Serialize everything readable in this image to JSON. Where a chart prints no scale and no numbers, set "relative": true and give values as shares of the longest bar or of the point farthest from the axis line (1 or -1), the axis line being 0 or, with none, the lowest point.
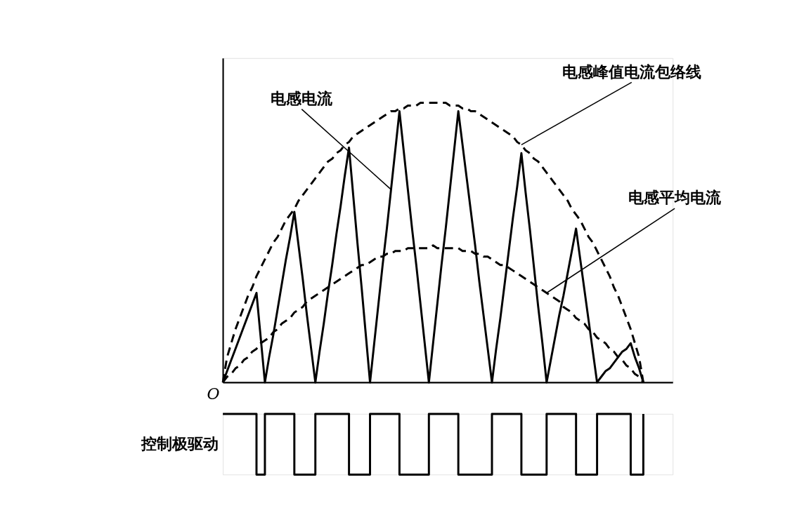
{
  "chart_data": [
    {
      "type": "line",
      "relative": true,
      "tick_labels": false,
      "grid": false,
      "legend": false,
      "annotations": [
        "O"
      ],
      "categories": [
        null,
        null,
        null,
        null,
        null,
        null,
        null,
        null,
        null,
        null,
        null,
        null,
        null,
        null,
        null,
        null,
        null,
        null,
        null,
        null,
        null,
        null,
        null,
        null,
        null,
        null,
        null,
        null,
        null,
        null,
        null,
        null,
        null,
        null,
        null,
        null,
        null,
        null,
        null,
        null,
        null,
        null,
        null,
        null,
        null,
        null,
        null,
        null,
        null,
        null,
        null,
        null,
        null,
        null,
        null,
        null,
        null,
        null,
        null,
        null,
        null,
        null,
        null,
        null,
        null,
        null,
        null,
        null,
        null,
        null,
        null,
        null,
        null,
        null,
        null,
        null,
        null,
        null,
        null,
        null,
        null,
        null,
        null,
        null,
        null,
        null,
        null,
        null,
        null,
        null,
        null,
        null,
        null,
        null,
        null,
        null,
        null,
        null,
        null,
        null,
        null
      ],
      "series": [
        {
          "name": "电感电流",
          "color": "#000000",
          "line_style": "solid",
          "values": [
            0,
            0.04,
            0.08,
            0.12,
            0.16,
            0.2,
            0.24,
            0.28,
            0.32,
            0.16,
            0,
            0.09,
            0.17,
            0.26,
            0.35,
            0.44,
            0.52,
            0.61,
            0.49,
            0.37,
            0.24,
            0.12,
            0,
            0.11,
            0.21,
            0.32,
            0.42,
            0.53,
            0.63,
            0.74,
            0.84,
            0.67,
            0.5,
            0.34,
            0.17,
            0,
            0.14,
            0.28,
            0.42,
            0.55,
            0.69,
            0.83,
            0.97,
            0.83,
            0.69,
            0.55,
            0.42,
            0.28,
            0.14,
            0,
            0.14,
            0.28,
            0.42,
            0.55,
            0.69,
            0.83,
            0.97,
            0.85,
            0.73,
            0.61,
            0.49,
            0.36,
            0.24,
            0.12,
            0,
            0.12,
            0.23,
            0.35,
            0.47,
            0.59,
            0.7,
            0.82,
            0.68,
            0.55,
            0.41,
            0.27,
            0.14,
            0,
            0.08,
            0.16,
            0.24,
            0.31,
            0.39,
            0.47,
            0.55,
            0.44,
            0.33,
            0.22,
            0.11,
            0,
            0.02,
            0.04,
            0.05,
            0.07,
            0.09,
            0.11,
            0.12,
            0.14,
            0.09,
            0.05,
            0
          ]
        },
        {
          "name": "电感峰值电流包络线",
          "color": "#000000",
          "line_style": "dashed",
          "values": [
            0,
            0.09,
            0.14,
            0.19,
            0.23,
            0.27,
            0.31,
            0.34,
            0.38,
            0.41,
            0.44,
            0.47,
            0.5,
            0.52,
            0.55,
            0.58,
            0.6,
            0.62,
            0.65,
            0.67,
            0.69,
            0.71,
            0.73,
            0.75,
            0.77,
            0.79,
            0.8,
            0.82,
            0.83,
            0.85,
            0.86,
            0.88,
            0.89,
            0.9,
            0.91,
            0.92,
            0.93,
            0.94,
            0.95,
            0.96,
            0.97,
            0.97,
            0.98,
            0.98,
            0.99,
            0.99,
            0.99,
            1,
            1,
            1,
            1,
            1,
            1,
            1,
            0.99,
            0.99,
            0.99,
            0.98,
            0.98,
            0.97,
            0.97,
            0.96,
            0.95,
            0.94,
            0.93,
            0.92,
            0.91,
            0.9,
            0.89,
            0.88,
            0.86,
            0.85,
            0.83,
            0.82,
            0.8,
            0.79,
            0.77,
            0.75,
            0.73,
            0.71,
            0.69,
            0.67,
            0.65,
            0.62,
            0.6,
            0.58,
            0.55,
            0.52,
            0.5,
            0.47,
            0.44,
            0.41,
            0.38,
            0.34,
            0.31,
            0.27,
            0.23,
            0.19,
            0.14,
            0.09,
            0
          ]
        },
        {
          "name": "电感平均电流",
          "color": "#000000",
          "line_style": "dashed",
          "values": [
            0,
            0.02,
            0.03,
            0.05,
            0.06,
            0.08,
            0.09,
            0.11,
            0.12,
            0.14,
            0.15,
            0.16,
            0.18,
            0.19,
            0.21,
            0.22,
            0.23,
            0.25,
            0.26,
            0.27,
            0.29,
            0.3,
            0.31,
            0.32,
            0.33,
            0.34,
            0.35,
            0.36,
            0.37,
            0.38,
            0.39,
            0.4,
            0.41,
            0.42,
            0.42,
            0.43,
            0.44,
            0.45,
            0.45,
            0.46,
            0.46,
            0.47,
            0.47,
            0.47,
            0.48,
            0.48,
            0.48,
            0.48,
            0.48,
            0.48,
            0.49,
            0.48,
            0.48,
            0.48,
            0.48,
            0.48,
            0.48,
            0.47,
            0.47,
            0.47,
            0.46,
            0.46,
            0.45,
            0.45,
            0.44,
            0.43,
            0.42,
            0.42,
            0.41,
            0.4,
            0.39,
            0.38,
            0.37,
            0.36,
            0.35,
            0.34,
            0.33,
            0.32,
            0.31,
            0.3,
            0.29,
            0.27,
            0.26,
            0.25,
            0.23,
            0.22,
            0.21,
            0.19,
            0.18,
            0.16,
            0.15,
            0.14,
            0.12,
            0.11,
            0.09,
            0.08,
            0.06,
            0.05,
            0.03,
            0.02,
            0
          ]
        }
      ]
    },
    {
      "type": "step",
      "relative": true,
      "tick_labels": false,
      "grid": false,
      "legend": false,
      "ylabel": "控制极驱动",
      "categories": [
        null,
        null,
        null,
        null,
        null,
        null,
        null,
        null,
        null,
        null,
        null,
        null,
        null,
        null,
        null,
        null,
        null,
        null,
        null,
        null,
        null,
        null,
        null,
        null,
        null,
        null,
        null,
        null,
        null,
        null,
        null,
        null,
        null,
        null,
        null,
        null,
        null,
        null,
        null,
        null,
        null,
        null,
        null,
        null,
        null,
        null,
        null,
        null,
        null,
        null,
        null,
        null,
        null,
        null,
        null,
        null,
        null,
        null,
        null,
        null,
        null,
        null,
        null,
        null,
        null,
        null,
        null,
        null,
        null,
        null,
        null,
        null,
        null,
        null,
        null,
        null,
        null,
        null,
        null,
        null,
        null,
        null,
        null,
        null,
        null,
        null,
        null,
        null,
        null,
        null,
        null,
        null,
        null,
        null,
        null,
        null,
        null,
        null,
        null,
        null,
        null
      ],
      "series": [
        {
          "color": "#000000",
          "line_style": "solid",
          "values": [
            1,
            1,
            1,
            1,
            1,
            1,
            1,
            1,
            0,
            0,
            1,
            1,
            1,
            1,
            1,
            1,
            1,
            0,
            0,
            0,
            0,
            0,
            1,
            1,
            1,
            1,
            1,
            1,
            1,
            1,
            0,
            0,
            0,
            0,
            0,
            1,
            1,
            1,
            1,
            1,
            1,
            1,
            0,
            0,
            0,
            0,
            0,
            0,
            0,
            1,
            1,
            1,
            1,
            1,
            1,
            1,
            0,
            0,
            0,
            0,
            0,
            0,
            0,
            0,
            1,
            1,
            1,
            1,
            1,
            1,
            1,
            0,
            0,
            0,
            0,
            0,
            0,
            1,
            1,
            1,
            1,
            1,
            1,
            1,
            0,
            0,
            0,
            0,
            0,
            1,
            1,
            1,
            1,
            1,
            1,
            1,
            1,
            0,
            0,
            0,
            1
          ]
        }
      ]
    }
  ]
}
